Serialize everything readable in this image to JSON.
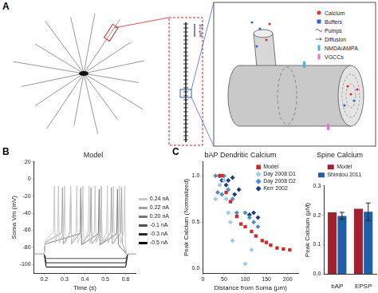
{
  "panel_labels": [
    "A",
    "B",
    "C"
  ],
  "diagram": {
    "scale_bar": "10 μm",
    "legend": [
      {
        "name": "Calcium",
        "color": "#e03030",
        "marker": "circle"
      },
      {
        "name": "Buffers",
        "color": "#3366cc",
        "marker": "square"
      },
      {
        "name": "Pumps",
        "color": "#8a2be2",
        "marker": "wave"
      },
      {
        "name": "Diffusion",
        "color": "#777777",
        "marker": "arrow"
      },
      {
        "name": "NMDA/AMPA",
        "color": "#4fb3d9",
        "marker": "channel"
      },
      {
        "name": "VGCCs",
        "color": "#e377c2",
        "marker": "channel"
      }
    ]
  },
  "chart_data": [
    {
      "type": "line",
      "title": "Model",
      "x_label": "Time (s)",
      "y_label": "Soma Vm (mV)",
      "xlim": [
        0.15,
        0.65
      ],
      "xticks": [
        0.2,
        0.3,
        0.4,
        0.5,
        0.6
      ],
      "ylim": [
        -110,
        20
      ],
      "yticks": [
        -100,
        -80,
        -60,
        -40,
        -20,
        0,
        20
      ],
      "grid": false,
      "legend": "right",
      "series": [
        {
          "name": "0.24 nA",
          "color": "#c8c8c8",
          "x": [
            0.15,
            0.2,
            0.205,
            0.246,
            0.25,
            0.254,
            0.266,
            0.27,
            0.274,
            0.296,
            0.3,
            0.304,
            0.326,
            0.33,
            0.334,
            0.356,
            0.36,
            0.364,
            0.386,
            0.39,
            0.394,
            0.416,
            0.42,
            0.424,
            0.446,
            0.45,
            0.454,
            0.476,
            0.48,
            0.484,
            0.506,
            0.51,
            0.514,
            0.536,
            0.54,
            0.544,
            0.566,
            0.57,
            0.574,
            0.591,
            0.595,
            0.599,
            0.605,
            0.65
          ],
          "values": [
            -88,
            -88,
            -72,
            -62,
            -8,
            -75,
            -62,
            -8,
            -75,
            -62,
            -8,
            -75,
            -62,
            -8,
            -75,
            -62,
            -8,
            -75,
            -62,
            -8,
            -75,
            -62,
            -8,
            -75,
            -62,
            -8,
            -75,
            -62,
            -8,
            -75,
            -62,
            -8,
            -75,
            -62,
            -8,
            -75,
            -62,
            -8,
            -75,
            -62,
            -8,
            -75,
            -88,
            -88
          ]
        },
        {
          "name": "0.22 nA",
          "color": "#a0a0a0",
          "x": [
            0.15,
            0.2,
            0.205,
            0.286,
            0.29,
            0.294,
            0.326,
            0.33,
            0.334,
            0.376,
            0.38,
            0.384,
            0.426,
            0.43,
            0.434,
            0.476,
            0.48,
            0.484,
            0.526,
            0.53,
            0.534,
            0.576,
            0.58,
            0.584,
            0.605,
            0.65
          ],
          "values": [
            -88,
            -88,
            -74,
            -63,
            -10,
            -76,
            -63,
            -10,
            -76,
            -63,
            -10,
            -76,
            -63,
            -10,
            -76,
            -63,
            -10,
            -76,
            -63,
            -10,
            -76,
            -63,
            -10,
            -76,
            -88,
            -88
          ]
        },
        {
          "name": "0.20 nA",
          "color": "#787878",
          "x": [
            0.15,
            0.2,
            0.205,
            0.376,
            0.38,
            0.384,
            0.466,
            0.47,
            0.474,
            0.556,
            0.56,
            0.564,
            0.605,
            0.65
          ],
          "values": [
            -88,
            -88,
            -76,
            -64,
            -12,
            -77,
            -64,
            -12,
            -77,
            -64,
            -12,
            -77,
            -88,
            -88
          ]
        },
        {
          "name": "-0.1 nA",
          "color": "#505050",
          "x": [
            0.15,
            0.2,
            0.21,
            0.6,
            0.61,
            0.65
          ],
          "values": [
            -88,
            -88,
            -93,
            -93,
            -88,
            -88
          ]
        },
        {
          "name": "-0.3 nA",
          "color": "#282828",
          "x": [
            0.15,
            0.2,
            0.21,
            0.6,
            0.61,
            0.65
          ],
          "values": [
            -88,
            -88,
            -98,
            -98,
            -88,
            -88
          ]
        },
        {
          "name": "-0.5 nA",
          "color": "#000000",
          "x": [
            0.15,
            0.2,
            0.21,
            0.6,
            0.61,
            0.65
          ],
          "values": [
            -88,
            -88,
            -103,
            -103,
            -88,
            -88
          ]
        }
      ]
    },
    {
      "type": "scatter",
      "title": "bAP Dendritic Calcium",
      "x_label": "Distance from Soma (μm)",
      "y_label": "Peak Calcium (Normalized)",
      "xlim": [
        0,
        225
      ],
      "xticks": [
        0,
        50,
        100,
        150,
        200
      ],
      "ylim": [
        -0.05,
        1.15
      ],
      "yticks": [
        {
          "value": 0,
          "label": "0.0"
        },
        0.5,
        {
          "value": 1,
          "label": "1.0"
        }
      ],
      "grid": false,
      "legend": "upper right",
      "series": [
        {
          "name": "Model",
          "color": "#d62728",
          "marker": "square",
          "x": [
            40,
            45,
            55,
            65,
            80,
            90,
            100,
            115,
            125,
            140,
            150,
            160,
            175,
            190,
            205
          ],
          "values": [
            1.0,
            1.0,
            0.82,
            0.72,
            0.56,
            0.48,
            0.45,
            0.4,
            0.35,
            0.3,
            0.28,
            0.25,
            0.22,
            0.21,
            0.2
          ]
        },
        {
          "name": "Day 2008 D1",
          "color": "#9fc9e8",
          "marker": "diamond",
          "x": [
            30,
            40,
            50,
            55,
            60,
            65,
            70,
            100,
            115
          ],
          "values": [
            0.75,
            0.9,
            0.95,
            0.75,
            0.6,
            0.5,
            0.3,
            0.05,
            0.2
          ]
        },
        {
          "name": "Day 2008 D2",
          "color": "#4f8fcc",
          "marker": "diamond",
          "x": [
            30,
            35,
            45,
            50,
            60,
            70,
            80,
            100,
            110,
            120,
            130
          ],
          "values": [
            1.0,
            0.82,
            0.8,
            1.0,
            0.85,
            0.75,
            0.6,
            0.6,
            0.55,
            0.5,
            0.45
          ]
        },
        {
          "name": "Kerr 2002",
          "color": "#1d3f7a",
          "marker": "diamond",
          "x": [
            40,
            45,
            55,
            60,
            70,
            75,
            85,
            110,
            120,
            130
          ],
          "values": [
            1.0,
            0.95,
            0.9,
            0.95,
            0.98,
            0.8,
            0.85,
            0.58,
            0.6,
            0.55
          ]
        }
      ]
    },
    {
      "type": "bar",
      "title": "Spine Calcium",
      "y_label": "Peak Calcium (μM)",
      "categories": [
        "bAP",
        "EPSP"
      ],
      "ylim": [
        0,
        0.3
      ],
      "yticks": [
        {
          "value": 0,
          "label": "0.0"
        },
        0.1,
        0.2,
        0.3
      ],
      "grid": false,
      "legend": "top",
      "series": [
        {
          "name": "Model",
          "color": "#a3202f",
          "values": [
            0.21,
            0.222
          ]
        },
        {
          "name": "Shindou 2011",
          "color": "#1f5fa8",
          "values": [
            0.198,
            0.212
          ],
          "errors": [
            0.012,
            0.03
          ]
        }
      ]
    }
  ]
}
